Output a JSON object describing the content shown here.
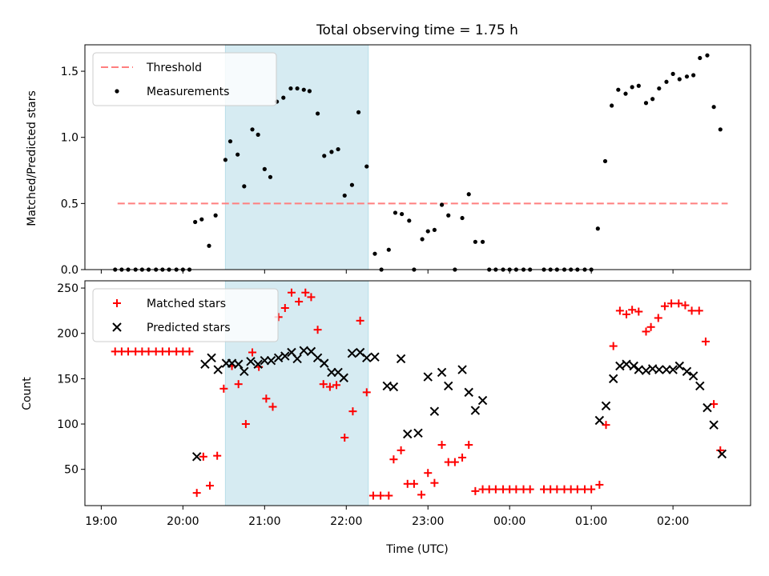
{
  "chart_data": [
    {
      "type": "scatter",
      "title": "Total observing time = 1.75 h",
      "xlabel": "",
      "ylabel": "Matched/Predicted stars",
      "ylim": [
        0,
        1.7
      ],
      "yticks": [
        0.0,
        0.5,
        1.0,
        1.5
      ],
      "ytick_labels": [
        "0.0",
        "0.5",
        "1.0",
        "1.5"
      ],
      "x_unit": "hours since 19:00 UTC",
      "xlim": [
        -0.2,
        7.95
      ],
      "legend_position": "top-left",
      "shaded_span": [
        1.52,
        3.27
      ],
      "shade_color": "#add8e6",
      "threshold": {
        "name": "Threshold",
        "value": 0.5,
        "x_start": 0.2,
        "x_end": 7.67,
        "color": "#ff7f7f"
      },
      "series": [
        {
          "name": "Measurements",
          "color": "#000000",
          "points": [
            [
              0.17,
              0
            ],
            [
              0.25,
              0
            ],
            [
              0.33,
              0
            ],
            [
              0.42,
              0
            ],
            [
              0.5,
              0
            ],
            [
              0.58,
              0
            ],
            [
              0.67,
              0
            ],
            [
              0.75,
              0
            ],
            [
              0.83,
              0
            ],
            [
              0.92,
              0
            ],
            [
              1.0,
              0
            ],
            [
              1.08,
              0
            ],
            [
              1.15,
              0.36
            ],
            [
              1.23,
              0.38
            ],
            [
              1.32,
              0.18
            ],
            [
              1.4,
              0.41
            ],
            [
              1.52,
              0.83
            ],
            [
              1.58,
              0.97
            ],
            [
              1.67,
              0.87
            ],
            [
              1.75,
              0.63
            ],
            [
              1.85,
              1.06
            ],
            [
              1.92,
              1.02
            ],
            [
              2.0,
              0.76
            ],
            [
              2.07,
              0.7
            ],
            [
              2.15,
              1.27
            ],
            [
              2.23,
              1.3
            ],
            [
              2.32,
              1.37
            ],
            [
              2.4,
              1.37
            ],
            [
              2.48,
              1.36
            ],
            [
              2.55,
              1.35
            ],
            [
              2.65,
              1.18
            ],
            [
              2.73,
              0.86
            ],
            [
              2.82,
              0.89
            ],
            [
              2.9,
              0.91
            ],
            [
              2.98,
              0.56
            ],
            [
              3.07,
              0.64
            ],
            [
              3.15,
              1.19
            ],
            [
              3.25,
              0.78
            ],
            [
              3.35,
              0.12
            ],
            [
              3.43,
              0.0
            ],
            [
              3.52,
              0.15
            ],
            [
              3.6,
              0.43
            ],
            [
              3.68,
              0.42
            ],
            [
              3.77,
              0.37
            ],
            [
              3.83,
              0.0
            ],
            [
              3.93,
              0.23
            ],
            [
              4.0,
              0.29
            ],
            [
              4.08,
              0.3
            ],
            [
              4.17,
              0.49
            ],
            [
              4.25,
              0.41
            ],
            [
              4.33,
              0.0
            ],
            [
              4.42,
              0.39
            ],
            [
              4.5,
              0.57
            ],
            [
              4.58,
              0.21
            ],
            [
              4.67,
              0.21
            ],
            [
              4.75,
              0
            ],
            [
              4.83,
              0
            ],
            [
              4.92,
              0
            ],
            [
              5.0,
              0
            ],
            [
              5.08,
              0
            ],
            [
              5.17,
              0
            ],
            [
              5.25,
              0
            ],
            [
              5.42,
              0
            ],
            [
              5.5,
              0
            ],
            [
              5.58,
              0
            ],
            [
              5.67,
              0
            ],
            [
              5.75,
              0
            ],
            [
              5.83,
              0
            ],
            [
              5.92,
              0
            ],
            [
              6.0,
              0
            ],
            [
              6.08,
              0.31
            ],
            [
              6.17,
              0.82
            ],
            [
              6.25,
              1.24
            ],
            [
              6.33,
              1.36
            ],
            [
              6.42,
              1.33
            ],
            [
              6.5,
              1.38
            ],
            [
              6.58,
              1.39
            ],
            [
              6.67,
              1.26
            ],
            [
              6.75,
              1.29
            ],
            [
              6.83,
              1.37
            ],
            [
              6.92,
              1.42
            ],
            [
              7.0,
              1.48
            ],
            [
              7.08,
              1.44
            ],
            [
              7.17,
              1.46
            ],
            [
              7.25,
              1.47
            ],
            [
              7.33,
              1.6
            ],
            [
              7.42,
              1.62
            ],
            [
              7.5,
              1.23
            ],
            [
              7.58,
              1.06
            ]
          ]
        }
      ]
    },
    {
      "type": "scatter",
      "title": "",
      "xlabel": "Time (UTC)",
      "ylabel": "Count",
      "ylim": [
        10,
        258
      ],
      "yticks": [
        50,
        100,
        150,
        200,
        250
      ],
      "ytick_labels": [
        "50",
        "100",
        "150",
        "200",
        "250"
      ],
      "x_unit": "hours since 19:00 UTC",
      "xlim": [
        -0.2,
        7.95
      ],
      "xticks": [
        0,
        1,
        2,
        3,
        4,
        5,
        6,
        7
      ],
      "xtick_labels": [
        "19:00",
        "20:00",
        "21:00",
        "22:00",
        "23:00",
        "00:00",
        "01:00",
        "02:00"
      ],
      "legend_position": "top-left",
      "shaded_span": [
        1.52,
        3.27
      ],
      "shade_color": "#add8e6",
      "series": [
        {
          "name": "Matched stars",
          "color": "#ff0000",
          "marker": "plus",
          "points": [
            [
              0.17,
              180
            ],
            [
              0.25,
              180
            ],
            [
              0.33,
              180
            ],
            [
              0.42,
              180
            ],
            [
              0.5,
              180
            ],
            [
              0.58,
              180
            ],
            [
              0.67,
              180
            ],
            [
              0.75,
              180
            ],
            [
              0.83,
              180
            ],
            [
              0.92,
              180
            ],
            [
              1.0,
              180
            ],
            [
              1.08,
              180
            ],
            [
              1.17,
              24
            ],
            [
              1.25,
              64
            ],
            [
              1.33,
              32
            ],
            [
              1.42,
              65
            ],
            [
              1.5,
              139
            ],
            [
              1.6,
              164
            ],
            [
              1.68,
              144
            ],
            [
              1.77,
              100
            ],
            [
              1.85,
              179
            ],
            [
              1.93,
              163
            ],
            [
              2.02,
              128
            ],
            [
              2.1,
              119
            ],
            [
              2.17,
              218
            ],
            [
              2.25,
              228
            ],
            [
              2.33,
              245
            ],
            [
              2.42,
              235
            ],
            [
              2.5,
              245
            ],
            [
              2.57,
              240
            ],
            [
              2.65,
              204
            ],
            [
              2.72,
              144
            ],
            [
              2.8,
              141
            ],
            [
              2.88,
              143
            ],
            [
              2.98,
              85
            ],
            [
              3.08,
              114
            ],
            [
              3.17,
              214
            ],
            [
              3.25,
              135
            ],
            [
              3.33,
              21
            ],
            [
              3.42,
              21
            ],
            [
              3.52,
              21
            ],
            [
              3.58,
              61
            ],
            [
              3.67,
              71
            ],
            [
              3.75,
              34
            ],
            [
              3.83,
              34
            ],
            [
              3.92,
              22
            ],
            [
              4.0,
              46
            ],
            [
              4.08,
              35
            ],
            [
              4.17,
              77
            ],
            [
              4.25,
              58
            ],
            [
              4.33,
              58
            ],
            [
              4.42,
              63
            ],
            [
              4.5,
              77
            ],
            [
              4.58,
              26
            ],
            [
              4.67,
              28
            ],
            [
              4.75,
              28
            ],
            [
              4.83,
              28
            ],
            [
              4.92,
              28
            ],
            [
              5.0,
              28
            ],
            [
              5.08,
              28
            ],
            [
              5.17,
              28
            ],
            [
              5.25,
              28
            ],
            [
              5.42,
              28
            ],
            [
              5.5,
              28
            ],
            [
              5.58,
              28
            ],
            [
              5.67,
              28
            ],
            [
              5.75,
              28
            ],
            [
              5.83,
              28
            ],
            [
              5.92,
              28
            ],
            [
              6.0,
              28
            ],
            [
              6.1,
              33
            ],
            [
              6.18,
              99
            ],
            [
              6.27,
              186
            ],
            [
              6.35,
              225
            ],
            [
              6.43,
              221
            ],
            [
              6.5,
              226
            ],
            [
              6.58,
              224
            ],
            [
              6.67,
              202
            ],
            [
              6.73,
              207
            ],
            [
              6.82,
              217
            ],
            [
              6.9,
              230
            ],
            [
              6.98,
              233
            ],
            [
              7.07,
              233
            ],
            [
              7.15,
              231
            ],
            [
              7.23,
              225
            ],
            [
              7.32,
              225
            ],
            [
              7.4,
              191
            ],
            [
              7.5,
              122
            ],
            [
              7.58,
              71
            ]
          ]
        },
        {
          "name": "Predicted stars",
          "color": "#000000",
          "marker": "x",
          "points": [
            [
              1.17,
              64
            ],
            [
              1.27,
              166
            ],
            [
              1.35,
              173
            ],
            [
              1.43,
              160
            ],
            [
              1.53,
              167
            ],
            [
              1.6,
              167
            ],
            [
              1.68,
              166
            ],
            [
              1.75,
              158
            ],
            [
              1.83,
              169
            ],
            [
              1.92,
              166
            ],
            [
              2.0,
              170
            ],
            [
              2.08,
              170
            ],
            [
              2.17,
              173
            ],
            [
              2.25,
              175
            ],
            [
              2.33,
              179
            ],
            [
              2.4,
              172
            ],
            [
              2.48,
              181
            ],
            [
              2.57,
              180
            ],
            [
              2.65,
              173
            ],
            [
              2.73,
              167
            ],
            [
              2.82,
              157
            ],
            [
              2.9,
              157
            ],
            [
              2.97,
              151
            ],
            [
              3.07,
              178
            ],
            [
              3.17,
              179
            ],
            [
              3.25,
              173
            ],
            [
              3.35,
              174
            ],
            [
              3.5,
              142
            ],
            [
              3.58,
              141
            ],
            [
              3.67,
              172
            ],
            [
              3.75,
              89
            ],
            [
              3.88,
              90
            ],
            [
              4.0,
              152
            ],
            [
              4.08,
              114
            ],
            [
              4.17,
              157
            ],
            [
              4.25,
              142
            ],
            [
              4.42,
              160
            ],
            [
              4.5,
              135
            ],
            [
              4.58,
              115
            ],
            [
              4.67,
              126
            ],
            [
              6.1,
              104
            ],
            [
              6.18,
              120
            ],
            [
              6.27,
              150
            ],
            [
              6.35,
              164
            ],
            [
              6.43,
              166
            ],
            [
              6.52,
              164
            ],
            [
              6.58,
              160
            ],
            [
              6.67,
              159
            ],
            [
              6.75,
              161
            ],
            [
              6.83,
              160
            ],
            [
              6.92,
              160
            ],
            [
              7.0,
              160
            ],
            [
              7.08,
              164
            ],
            [
              7.17,
              158
            ],
            [
              7.25,
              153
            ],
            [
              7.33,
              142
            ],
            [
              7.42,
              118
            ],
            [
              7.5,
              99
            ],
            [
              7.6,
              67
            ]
          ]
        }
      ]
    }
  ]
}
